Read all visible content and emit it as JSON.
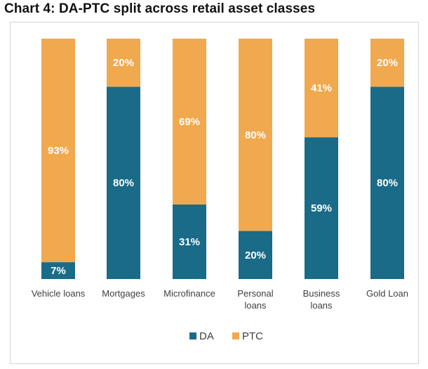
{
  "chart_data": {
    "type": "bar",
    "stacked": true,
    "title": "Chart 4: DA-PTC split across retail asset classes",
    "categories": [
      "Vehicle loans",
      "Mortgages",
      "Microfinance",
      "Personal loans",
      "Business loans",
      "Gold Loan"
    ],
    "category_lines": [
      [
        "Vehicle loans"
      ],
      [
        "Mortgages"
      ],
      [
        "Microfinance"
      ],
      [
        "Personal",
        "loans"
      ],
      [
        "Business",
        "loans"
      ],
      [
        "Gold Loan"
      ]
    ],
    "series": [
      {
        "name": "DA",
        "values": [
          7,
          80,
          31,
          20,
          59,
          80
        ],
        "labels": [
          "7%",
          "80%",
          "31%",
          "20%",
          "59%",
          "80%"
        ],
        "color": "#1a6b87"
      },
      {
        "name": "PTC",
        "values": [
          93,
          20,
          69,
          80,
          41,
          20
        ],
        "labels": [
          "93%",
          "20%",
          "69%",
          "80%",
          "41%",
          "20%"
        ],
        "color": "#f0a94e"
      }
    ],
    "ylim": [
      0,
      100
    ],
    "grid": false,
    "legend_position": "bottom"
  }
}
